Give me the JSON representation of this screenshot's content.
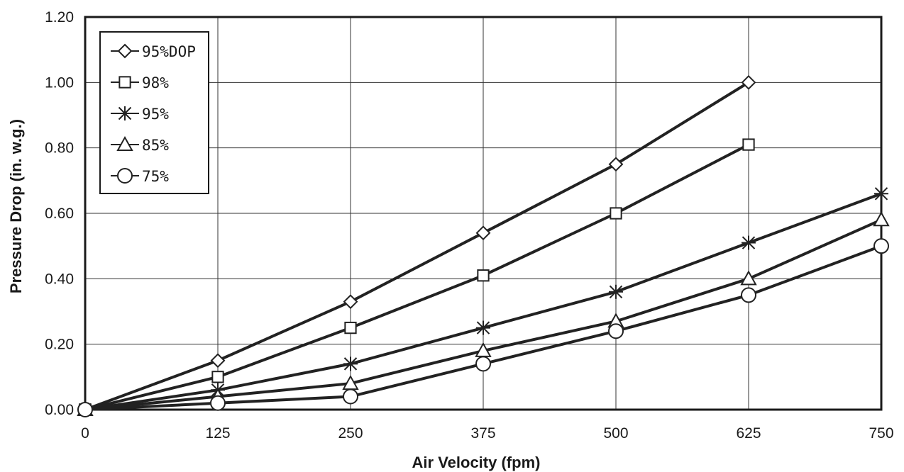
{
  "chart_data": {
    "type": "line",
    "title": "",
    "xlabel": "Air Velocity (fpm)",
    "ylabel": "Pressure Drop (in. w.g.)",
    "x": [
      0,
      125,
      250,
      375,
      500,
      625,
      750
    ],
    "x_tick_labels": [
      "0",
      "125",
      "250",
      "375",
      "500",
      "625",
      "750"
    ],
    "y_tick_values": [
      0,
      0.2,
      0.4,
      0.6,
      0.8,
      1.0,
      1.2
    ],
    "y_tick_labels": [
      "0.00",
      "0.20",
      "0.40",
      "0.60",
      "0.80",
      "1.00",
      "1.20"
    ],
    "xlim": [
      0,
      750
    ],
    "ylim": [
      0,
      1.2
    ],
    "grid": true,
    "legend_position": "top-left",
    "series": [
      {
        "name": "95%DOP",
        "marker": "diamond",
        "points": [
          [
            0,
            0
          ],
          [
            125,
            0.15
          ],
          [
            250,
            0.33
          ],
          [
            375,
            0.54
          ],
          [
            500,
            0.75
          ],
          [
            625,
            1.0
          ]
        ]
      },
      {
        "name": "98%",
        "marker": "square",
        "points": [
          [
            0,
            0
          ],
          [
            125,
            0.1
          ],
          [
            250,
            0.25
          ],
          [
            375,
            0.41
          ],
          [
            500,
            0.6
          ],
          [
            625,
            0.81
          ]
        ]
      },
      {
        "name": "95%",
        "marker": "asterisk",
        "points": [
          [
            0,
            0
          ],
          [
            125,
            0.06
          ],
          [
            250,
            0.14
          ],
          [
            375,
            0.25
          ],
          [
            500,
            0.36
          ],
          [
            625,
            0.51
          ],
          [
            750,
            0.66
          ]
        ]
      },
      {
        "name": "85%",
        "marker": "triangle",
        "points": [
          [
            0,
            0
          ],
          [
            125,
            0.04
          ],
          [
            250,
            0.08
          ],
          [
            375,
            0.18
          ],
          [
            500,
            0.27
          ],
          [
            625,
            0.4
          ],
          [
            750,
            0.58
          ]
        ]
      },
      {
        "name": "75%",
        "marker": "circle",
        "points": [
          [
            0,
            0
          ],
          [
            125,
            0.02
          ],
          [
            250,
            0.04
          ],
          [
            375,
            0.14
          ],
          [
            500,
            0.24
          ],
          [
            625,
            0.35
          ],
          [
            750,
            0.5
          ]
        ]
      }
    ],
    "colors": {
      "line": "#222222",
      "grid": "#333333",
      "background": "#ffffff"
    }
  }
}
